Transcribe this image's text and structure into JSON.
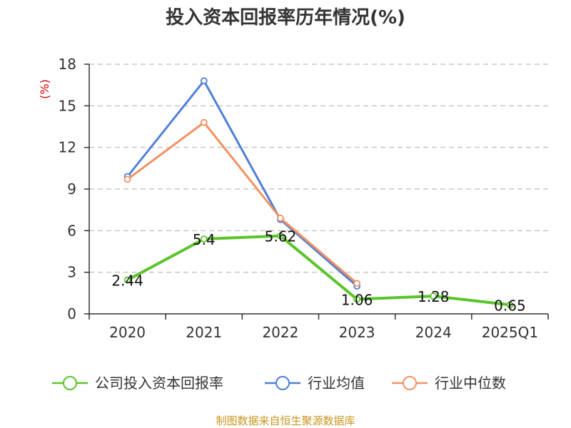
{
  "chart_data": {
    "type": "line",
    "title": "投入资本回报率历年情况(%)",
    "ylabel": "(%)",
    "xlabel": "",
    "categories": [
      "2020",
      "2021",
      "2022",
      "2023",
      "2024",
      "2025Q1"
    ],
    "ylim": [
      0,
      18
    ],
    "yticks": [
      0,
      3,
      6,
      9,
      12,
      15,
      18
    ],
    "grid": true,
    "legend_position": "bottom",
    "series": [
      {
        "name": "公司投入资本回报率",
        "color": "#5ac52a",
        "values": [
          2.44,
          5.4,
          5.62,
          1.06,
          1.28,
          0.65
        ],
        "labels": [
          "2.44",
          "5.4",
          "5.62",
          "1.06",
          "1.28",
          "0.65"
        ]
      },
      {
        "name": "行业均值",
        "color": "#4f7fd8",
        "values": [
          9.9,
          16.8,
          6.8,
          2.0,
          null,
          null
        ]
      },
      {
        "name": "行业中位数",
        "color": "#f39162",
        "values": [
          9.7,
          13.8,
          6.9,
          2.2,
          null,
          null
        ]
      }
    ]
  },
  "source": "制图数据来自恒生聚源数据库"
}
